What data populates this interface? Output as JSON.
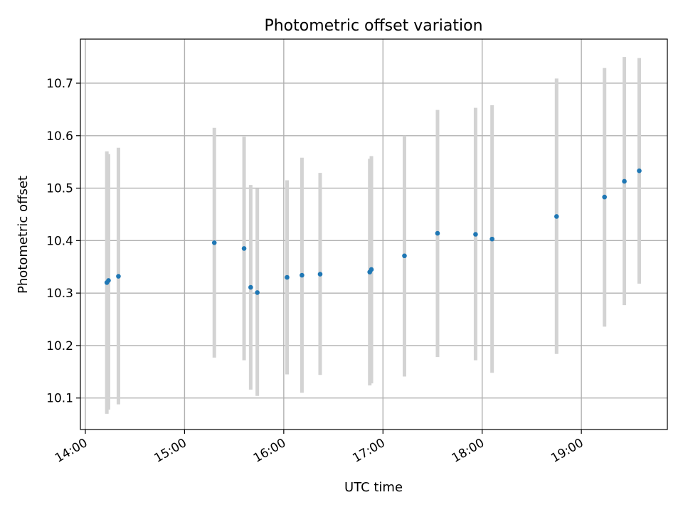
{
  "chart_data": {
    "type": "scatter",
    "title": "Photometric offset variation",
    "xlabel": "UTC time",
    "ylabel": "Photometric offset",
    "xlim": [
      "13:57",
      "19:52"
    ],
    "ylim": [
      10.04,
      10.784
    ],
    "x_ticks": [
      "14:00",
      "15:00",
      "16:00",
      "17:00",
      "18:00",
      "19:00"
    ],
    "y_ticks": [
      10.1,
      10.2,
      10.3,
      10.4,
      10.5,
      10.6,
      10.7
    ],
    "y_tick_labels": [
      "10.1",
      "10.2",
      "10.3",
      "10.4",
      "10.5",
      "10.6",
      "10.7"
    ],
    "grid": true,
    "colors": {
      "points": "#1f77b4",
      "error_bars": "#d3d3d3",
      "grid": "#b0b0b0"
    },
    "series": [
      {
        "points": [
          {
            "x": "14:13",
            "y": 10.32,
            "ylow": 10.07,
            "yhigh": 10.57
          },
          {
            "x": "14:14",
            "y": 10.324,
            "ylow": 10.078,
            "yhigh": 10.565
          },
          {
            "x": "14:20",
            "y": 10.332,
            "ylow": 10.088,
            "yhigh": 10.577
          },
          {
            "x": "15:18",
            "y": 10.396,
            "ylow": 10.177,
            "yhigh": 10.615
          },
          {
            "x": "15:36",
            "y": 10.385,
            "ylow": 10.172,
            "yhigh": 10.598
          },
          {
            "x": "15:40",
            "y": 10.311,
            "ylow": 10.116,
            "yhigh": 10.506
          },
          {
            "x": "15:44",
            "y": 10.301,
            "ylow": 10.104,
            "yhigh": 10.499
          },
          {
            "x": "16:02",
            "y": 10.33,
            "ylow": 10.145,
            "yhigh": 10.515
          },
          {
            "x": "16:11",
            "y": 10.334,
            "ylow": 10.11,
            "yhigh": 10.558
          },
          {
            "x": "16:22",
            "y": 10.336,
            "ylow": 10.144,
            "yhigh": 10.529
          },
          {
            "x": "16:52",
            "y": 10.34,
            "ylow": 10.124,
            "yhigh": 10.556
          },
          {
            "x": "16:53",
            "y": 10.345,
            "ylow": 10.128,
            "yhigh": 10.561
          },
          {
            "x": "17:13",
            "y": 10.371,
            "ylow": 10.141,
            "yhigh": 10.6
          },
          {
            "x": "17:33",
            "y": 10.414,
            "ylow": 10.178,
            "yhigh": 10.649
          },
          {
            "x": "17:56",
            "y": 10.412,
            "ylow": 10.172,
            "yhigh": 10.653
          },
          {
            "x": "18:06",
            "y": 10.403,
            "ylow": 10.148,
            "yhigh": 10.658
          },
          {
            "x": "18:45",
            "y": 10.446,
            "ylow": 10.184,
            "yhigh": 10.709
          },
          {
            "x": "19:14",
            "y": 10.483,
            "ylow": 10.236,
            "yhigh": 10.729
          },
          {
            "x": "19:26",
            "y": 10.513,
            "ylow": 10.277,
            "yhigh": 10.75
          },
          {
            "x": "19:35",
            "y": 10.533,
            "ylow": 10.318,
            "yhigh": 10.748
          }
        ]
      }
    ]
  }
}
